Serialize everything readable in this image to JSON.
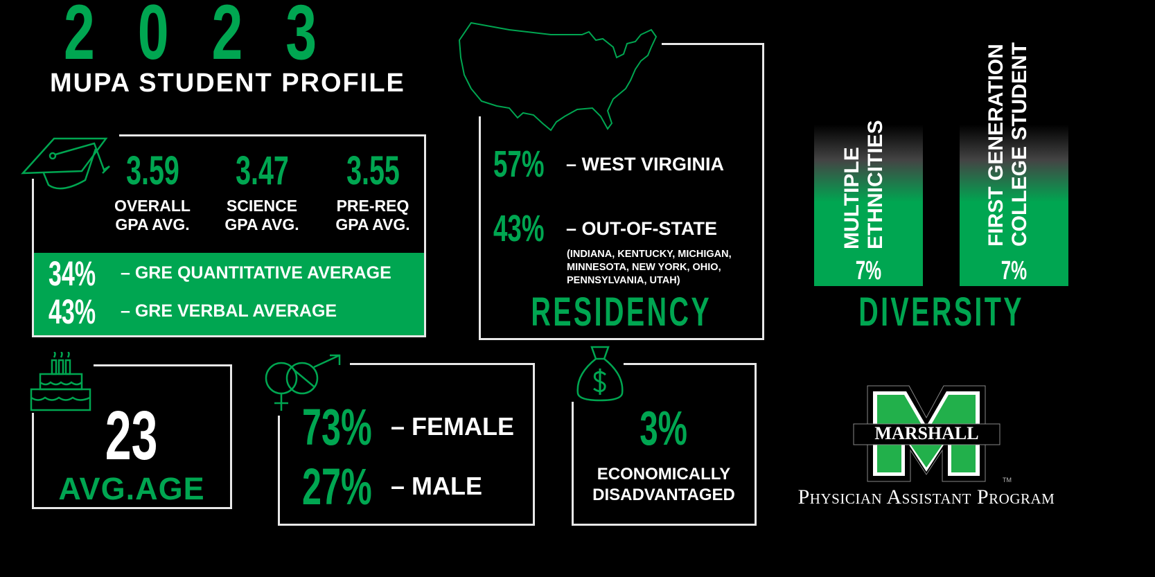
{
  "header": {
    "year": "2023",
    "title": "MUPA STUDENT PROFILE"
  },
  "gpa": {
    "items": [
      {
        "value": "3.59",
        "label1": "OVERALL",
        "label2": "GPA AVG."
      },
      {
        "value": "3.47",
        "label1": "SCIENCE",
        "label2": "GPA AVG."
      },
      {
        "value": "3.55",
        "label1": "PRE-REQ",
        "label2": "GPA AVG."
      }
    ],
    "gre": [
      {
        "value": "34%",
        "label": "– GRE QUANTITATIVE AVERAGE"
      },
      {
        "value": "43%",
        "label": "– GRE VERBAL AVERAGE"
      }
    ]
  },
  "residency": {
    "rows": [
      {
        "value": "57%",
        "label": "– WEST VIRGINIA"
      },
      {
        "value": "43%",
        "label": "– OUT-OF-STATE"
      }
    ],
    "states_line1": "(INDIANA, KENTUCKY, MICHIGAN,",
    "states_line2": "MINNESOTA, NEW YORK, OHIO,",
    "states_line3": "PENNSYLVANIA, UTAH)",
    "title": "RESIDENCY"
  },
  "diversity": {
    "bars": [
      {
        "line1": "MULTIPLE",
        "line2": "ETHNICITIES",
        "value": "7%"
      },
      {
        "line1": "FIRST GENERATION",
        "line2": "COLLEGE STUDENT",
        "value": "7%"
      }
    ],
    "title": "DIVERSITY"
  },
  "age": {
    "value": "23",
    "label": "AVG.AGE"
  },
  "gender": {
    "rows": [
      {
        "value": "73%",
        "label": "– FEMALE"
      },
      {
        "value": "27%",
        "label": "– MALE"
      }
    ]
  },
  "economic": {
    "value": "3%",
    "line1": "ECONOMICALLY",
    "line2": "DISADVANTAGED"
  },
  "logo": {
    "wordmark": "MARSHALL",
    "tm": "TM",
    "program": "Physician Assistant Program"
  },
  "colors": {
    "accent": "#00a651",
    "background": "#000000",
    "logo_green": "#22b04b"
  }
}
